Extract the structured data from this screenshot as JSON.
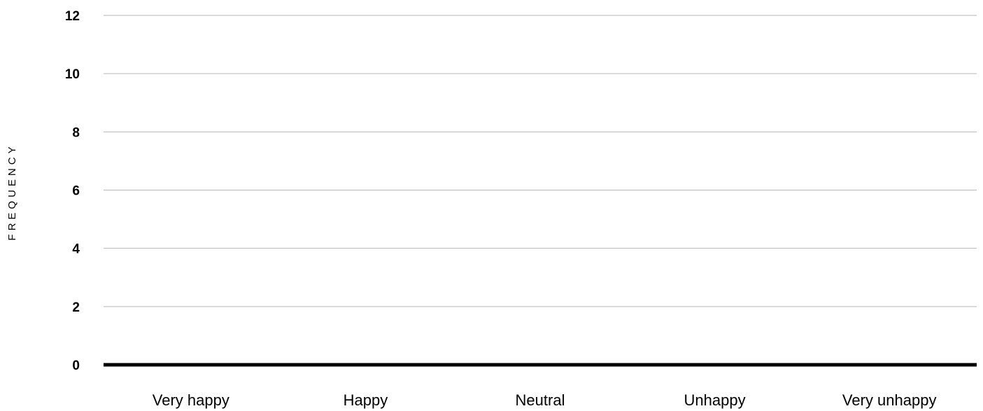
{
  "chart_data": {
    "type": "bar",
    "title": "",
    "xlabel": "",
    "ylabel": "FREQUENCY",
    "categories": [
      "Very happy",
      "Happy",
      "Neutral",
      "Unhappy",
      "Very unhappy"
    ],
    "values": [
      0,
      0,
      0,
      0,
      0
    ],
    "ylim": [
      0,
      12
    ],
    "yticks": [
      "0",
      "2",
      "4",
      "6",
      "8",
      "10",
      "12"
    ],
    "grid": true,
    "legend": "none",
    "colors": {
      "gridline": "#b7b7b7",
      "baseline": "#000000",
      "bar": "#000000",
      "text": "#000000"
    }
  }
}
